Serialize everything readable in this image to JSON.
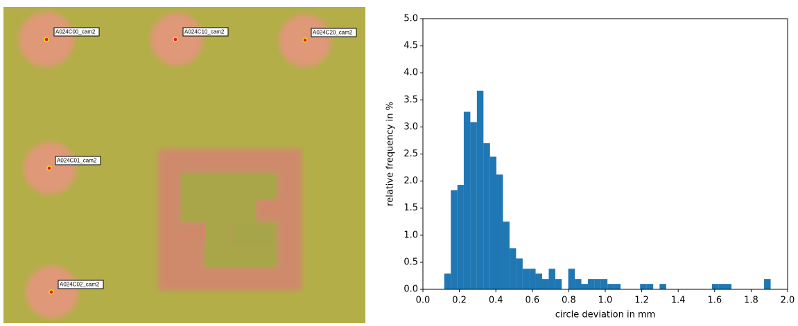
{
  "photo": {
    "labels": [
      "A024C00_cam2",
      "A024C10_cam2",
      "A024C20_cam2",
      "A024C01_cam2",
      "A024C02_cam2"
    ]
  },
  "chart_data": {
    "type": "histogram",
    "x_label": "circle deviation in mm",
    "y_label": "relative frequency in %",
    "color": "#1f77b4",
    "bins": [
      0.117,
      0.153,
      0.189,
      0.224,
      0.26,
      0.296,
      0.332,
      0.368,
      0.403,
      0.439,
      0.475,
      0.511,
      0.547,
      0.582,
      0.618,
      0.654,
      0.69,
      0.726,
      0.761,
      0.797,
      0.833,
      0.869,
      0.905,
      0.94,
      0.976,
      1.012,
      1.048,
      1.084,
      1.119,
      1.155,
      1.191,
      1.227,
      1.263,
      1.298,
      1.334,
      1.37,
      1.406,
      1.442,
      1.477,
      1.513,
      1.549,
      1.585,
      1.621,
      1.656,
      1.692,
      1.728,
      1.764,
      1.8,
      1.835,
      1.871,
      1.907
    ],
    "values": [
      0.29,
      1.83,
      1.93,
      3.28,
      3.09,
      3.67,
      2.7,
      2.45,
      2.12,
      1.25,
      0.76,
      0.57,
      0.38,
      0.38,
      0.29,
      0.19,
      0.38,
      0.19,
      0,
      0.38,
      0.19,
      0.1,
      0.19,
      0.19,
      0.19,
      0.1,
      0.1,
      0,
      0,
      0,
      0.1,
      0.1,
      0,
      0.1,
      0,
      0,
      0,
      0,
      0,
      0,
      0,
      0.1,
      0.1,
      0.1,
      0,
      0,
      0,
      0,
      0,
      0.19
    ],
    "xlim": [
      0,
      2
    ],
    "ylim": [
      0,
      5
    ],
    "xticks": [
      {
        "value": 0,
        "label": "0.0"
      },
      {
        "value": 0.2,
        "label": "0.2"
      },
      {
        "value": 0.4,
        "label": "0.4"
      },
      {
        "value": 0.6,
        "label": "0.6"
      },
      {
        "value": 0.8,
        "label": "0.8"
      },
      {
        "value": 1,
        "label": "1.0"
      },
      {
        "value": 1.2,
        "label": "1.2"
      },
      {
        "value": 1.4,
        "label": "1.4"
      },
      {
        "value": 1.6,
        "label": "1.6"
      },
      {
        "value": 1.8,
        "label": "1.8"
      },
      {
        "value": 2,
        "label": "2.0"
      }
    ],
    "yticks": [
      {
        "value": 0,
        "label": "0.0"
      },
      {
        "value": 0.5,
        "label": "0.5"
      },
      {
        "value": 1,
        "label": "1.0"
      },
      {
        "value": 1.5,
        "label": "1.5"
      },
      {
        "value": 2,
        "label": "2.0"
      },
      {
        "value": 2.5,
        "label": "2.5"
      },
      {
        "value": 3,
        "label": "3.0"
      },
      {
        "value": 3.5,
        "label": "3.5"
      },
      {
        "value": 4,
        "label": "4.0"
      },
      {
        "value": 4.5,
        "label": "4.5"
      },
      {
        "value": 5,
        "label": "5.0"
      }
    ]
  }
}
